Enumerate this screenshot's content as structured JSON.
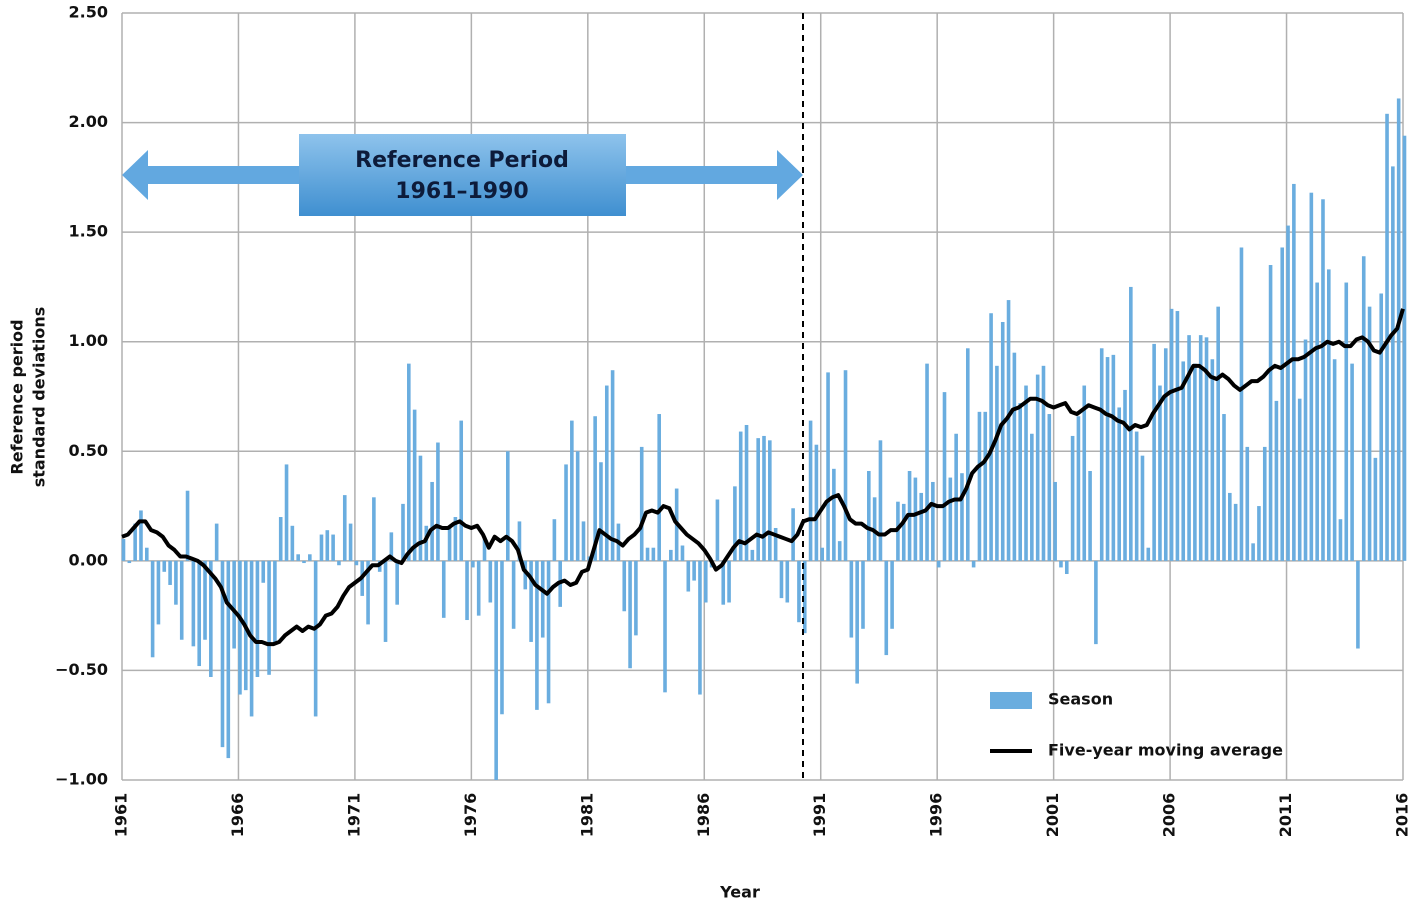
{
  "chart_data": {
    "type": "bar",
    "annotation": {
      "title": "Reference Period",
      "subtitle": "1961–1990"
    },
    "xlabel": "Year",
    "ylabel": [
      "Reference period",
      "standard deviations"
    ],
    "xlim": [
      1961,
      2016
    ],
    "xticks": [
      1961,
      1966,
      1971,
      1976,
      1981,
      1986,
      1991,
      1996,
      2001,
      2006,
      2011,
      2016
    ],
    "ylim": [
      -1,
      2.5
    ],
    "yticks": [
      {
        "value": -1,
        "label": "−1.00"
      },
      {
        "value": -0.5,
        "label": "−0.50"
      },
      {
        "value": 0,
        "label": "0.00"
      },
      {
        "value": 0.5,
        "label": "0.50"
      },
      {
        "value": 1,
        "label": "1.00"
      },
      {
        "value": 1.5,
        "label": "1.50"
      },
      {
        "value": 2,
        "label": "2.00"
      },
      {
        "value": 2.5,
        "label": "2.50"
      }
    ],
    "grid": true,
    "legend": "lower right",
    "x": [
      1961,
      1961.25,
      1961.5,
      1961.75,
      1962,
      1962.25,
      1962.5,
      1962.75,
      1963,
      1963.25,
      1963.5,
      1963.75,
      1964,
      1964.25,
      1964.5,
      1964.75,
      1965,
      1965.25,
      1965.5,
      1965.75,
      1966,
      1966.25,
      1966.5,
      1966.75,
      1967,
      1967.25,
      1967.5,
      1967.75,
      1968,
      1968.25,
      1968.5,
      1968.75,
      1969,
      1969.25,
      1969.5,
      1969.75,
      1970,
      1970.25,
      1970.5,
      1970.75,
      1971,
      1971.25,
      1971.5,
      1971.75,
      1972,
      1972.25,
      1972.5,
      1972.75,
      1973,
      1973.25,
      1973.5,
      1973.75,
      1974,
      1974.25,
      1974.5,
      1974.75,
      1975,
      1975.25,
      1975.5,
      1975.75,
      1976,
      1976.25,
      1976.5,
      1976.75,
      1977,
      1977.25,
      1977.5,
      1977.75,
      1978,
      1978.25,
      1978.5,
      1978.75,
      1979,
      1979.25,
      1979.5,
      1979.75,
      1980,
      1980.25,
      1980.5,
      1980.75,
      1981,
      1981.25,
      1981.5,
      1981.75,
      1982,
      1982.25,
      1982.5,
      1982.75,
      1983,
      1983.25,
      1983.5,
      1983.75,
      1984,
      1984.25,
      1984.5,
      1984.75,
      1985,
      1985.25,
      1985.5,
      1985.75,
      1986,
      1986.25,
      1986.5,
      1986.75,
      1987,
      1987.25,
      1987.5,
      1987.75,
      1988,
      1988.25,
      1988.5,
      1988.75,
      1989,
      1989.25,
      1989.5,
      1989.75,
      1990,
      1990.25,
      1990.5,
      1990.75,
      1991,
      1991.25,
      1991.5,
      1991.75,
      1992,
      1992.25,
      1992.5,
      1992.75,
      1993,
      1993.25,
      1993.5,
      1993.75,
      1994,
      1994.25,
      1994.5,
      1994.75,
      1995,
      1995.25,
      1995.5,
      1995.75,
      1996,
      1996.25,
      1996.5,
      1996.75,
      1997,
      1997.25,
      1997.5,
      1997.75,
      1998,
      1998.25,
      1998.5,
      1998.75,
      1999,
      1999.25,
      1999.5,
      1999.75,
      2000,
      2000.25,
      2000.5,
      2000.75,
      2001,
      2001.25,
      2001.5,
      2001.75,
      2002,
      2002.25,
      2002.5,
      2002.75,
      2003,
      2003.25,
      2003.5,
      2003.75,
      2004,
      2004.25,
      2004.5,
      2004.75,
      2005,
      2005.25,
      2005.5,
      2005.75,
      2006,
      2006.25,
      2006.5,
      2006.75,
      2007,
      2007.25,
      2007.5,
      2007.75,
      2008,
      2008.25,
      2008.5,
      2008.75,
      2009,
      2009.25,
      2009.5,
      2009.75,
      2010,
      2010.25,
      2010.5,
      2010.75,
      2011,
      2011.25,
      2011.5,
      2011.75,
      2012,
      2012.25,
      2012.5,
      2012.75,
      2013,
      2013.25,
      2013.5,
      2013.75,
      2014,
      2014.25,
      2014.5,
      2014.75,
      2015,
      2015.25,
      2015.5,
      2015.75,
      2016
    ],
    "series": [
      {
        "name": "Season",
        "type": "bar",
        "color": "#6aaddf",
        "values": [
          0.1,
          -0.01,
          0.17,
          0.23,
          0.06,
          -0.44,
          -0.29,
          -0.05,
          -0.11,
          -0.2,
          -0.36,
          0.32,
          -0.39,
          -0.48,
          -0.36,
          -0.53,
          0.17,
          -0.85,
          -0.9,
          -0.4,
          -0.61,
          -0.59,
          -0.71,
          -0.53,
          -0.1,
          -0.52,
          -0.38,
          0.2,
          0.44,
          0.16,
          0.03,
          -0.01,
          0.03,
          -0.71,
          0.12,
          0.14,
          0.12,
          -0.02,
          0.3,
          0.17,
          -0.02,
          -0.16,
          -0.29,
          0.29,
          -0.05,
          -0.37,
          0.13,
          -0.2,
          0.26,
          0.9,
          0.69,
          0.48,
          0.16,
          0.36,
          0.54,
          -0.26,
          0.15,
          0.2,
          0.64,
          -0.27,
          -0.03,
          -0.25,
          0.11,
          -0.19,
          -1.0,
          -0.7,
          0.5,
          -0.31,
          0.18,
          -0.13,
          -0.37,
          -0.68,
          -0.35,
          -0.65,
          0.19,
          -0.21,
          0.44,
          0.64,
          0.5,
          0.18,
          0.02,
          0.66,
          0.45,
          0.8,
          0.87,
          0.17,
          -0.23,
          -0.49,
          -0.34,
          0.52,
          0.06,
          0.06,
          0.67,
          -0.6,
          0.05,
          0.33,
          0.07,
          -0.14,
          -0.09,
          -0.61,
          -0.19,
          -0.03,
          0.28,
          -0.2,
          -0.19,
          0.34,
          0.59,
          0.62,
          0.05,
          0.56,
          0.57,
          0.55,
          0.15,
          -0.17,
          -0.19,
          0.24,
          -0.28,
          -0.33,
          0.64,
          0.53,
          0.06,
          0.86,
          0.42,
          0.09,
          0.87,
          -0.35,
          -0.56,
          -0.31,
          0.41,
          0.29,
          0.55,
          -0.43,
          -0.31,
          0.27,
          0.26,
          0.41,
          0.38,
          0.31,
          0.9,
          0.36,
          -0.03,
          0.77,
          0.38,
          0.58,
          0.4,
          0.97,
          -0.03,
          0.68,
          0.68,
          1.13,
          0.89,
          1.09,
          1.19,
          0.95,
          0.72,
          0.8,
          0.58,
          0.85,
          0.89,
          0.67,
          0.36,
          -0.03,
          -0.06,
          0.57,
          0.66,
          0.8,
          0.41,
          -0.38,
          0.97,
          0.93,
          0.94,
          0.7,
          0.78,
          1.25,
          0.59,
          0.48,
          0.06,
          0.99,
          0.8,
          0.97,
          1.15,
          1.14,
          0.91,
          1.03,
          0.9,
          1.03,
          1.02,
          0.92,
          1.16,
          0.67,
          0.31,
          0.26,
          1.43,
          0.52,
          0.08,
          0.25,
          0.52,
          1.35,
          0.73,
          1.43,
          1.53,
          1.72,
          0.74,
          1.01,
          1.68,
          1.27,
          1.65,
          1.33,
          0.92,
          0.19,
          1.27,
          0.9,
          -0.4,
          1.39,
          1.16,
          0.47,
          1.22,
          2.04,
          1.8,
          2.11,
          1.94
        ]
      },
      {
        "name": "Five-year moving average",
        "type": "line",
        "color": "#000000",
        "values": [
          0.11,
          0.12,
          0.15,
          0.18,
          0.18,
          0.14,
          0.13,
          0.11,
          0.07,
          0.05,
          0.02,
          0.02,
          0.01,
          0.0,
          -0.02,
          -0.05,
          -0.08,
          -0.12,
          -0.19,
          -0.22,
          -0.25,
          -0.29,
          -0.34,
          -0.37,
          -0.37,
          -0.38,
          -0.38,
          -0.37,
          -0.34,
          -0.32,
          -0.3,
          -0.32,
          -0.3,
          -0.31,
          -0.29,
          -0.25,
          -0.24,
          -0.21,
          -0.16,
          -0.12,
          -0.1,
          -0.08,
          -0.05,
          -0.02,
          -0.02,
          0.0,
          0.02,
          0.0,
          -0.01,
          0.03,
          0.06,
          0.08,
          0.09,
          0.14,
          0.16,
          0.15,
          0.15,
          0.17,
          0.18,
          0.16,
          0.15,
          0.16,
          0.12,
          0.06,
          0.11,
          0.09,
          0.11,
          0.09,
          0.05,
          -0.04,
          -0.07,
          -0.11,
          -0.13,
          -0.15,
          -0.12,
          -0.1,
          -0.09,
          -0.11,
          -0.1,
          -0.05,
          -0.04,
          0.05,
          0.14,
          0.12,
          0.1,
          0.09,
          0.07,
          0.1,
          0.12,
          0.15,
          0.22,
          0.23,
          0.22,
          0.25,
          0.24,
          0.18,
          0.15,
          0.12,
          0.1,
          0.08,
          0.05,
          0.01,
          -0.04,
          -0.02,
          0.02,
          0.06,
          0.09,
          0.08,
          0.1,
          0.12,
          0.11,
          0.13,
          0.12,
          0.11,
          0.1,
          0.09,
          0.12,
          0.18,
          0.19,
          0.19,
          0.23,
          0.27,
          0.29,
          0.3,
          0.25,
          0.19,
          0.17,
          0.17,
          0.15,
          0.14,
          0.12,
          0.12,
          0.14,
          0.14,
          0.17,
          0.21,
          0.21,
          0.22,
          0.23,
          0.26,
          0.25,
          0.25,
          0.27,
          0.28,
          0.28,
          0.33,
          0.4,
          0.43,
          0.45,
          0.49,
          0.55,
          0.62,
          0.65,
          0.69,
          0.7,
          0.72,
          0.74,
          0.74,
          0.73,
          0.71,
          0.7,
          0.71,
          0.72,
          0.68,
          0.67,
          0.69,
          0.71,
          0.7,
          0.69,
          0.67,
          0.66,
          0.64,
          0.63,
          0.6,
          0.62,
          0.61,
          0.62,
          0.67,
          0.71,
          0.75,
          0.77,
          0.78,
          0.79,
          0.84,
          0.89,
          0.89,
          0.87,
          0.84,
          0.83,
          0.85,
          0.83,
          0.8,
          0.78,
          0.8,
          0.82,
          0.82,
          0.84,
          0.87,
          0.89,
          0.88,
          0.9,
          0.92,
          0.92,
          0.93,
          0.95,
          0.97,
          0.98,
          1.0,
          0.99,
          1.0,
          0.98,
          0.98,
          1.01,
          1.02,
          1.0,
          0.96,
          0.95,
          0.99,
          1.03,
          1.06,
          1.15
        ]
      }
    ]
  }
}
